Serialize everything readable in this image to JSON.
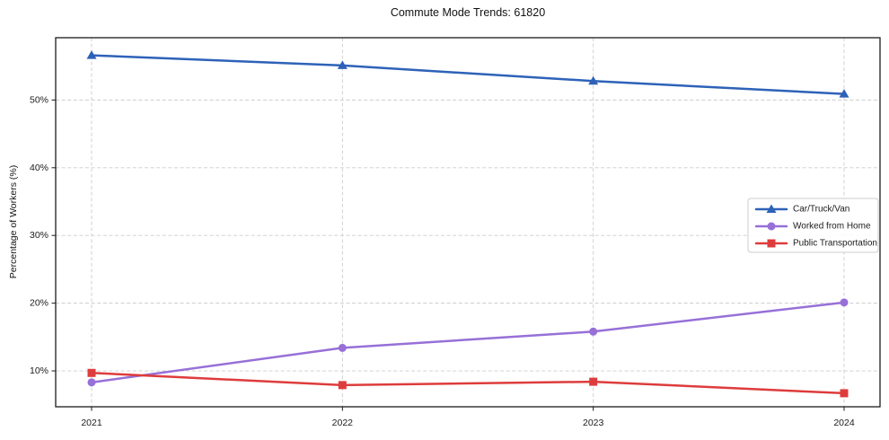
{
  "chart_data": {
    "type": "line",
    "title": "Commute Mode Trends: 61820",
    "xlabel": "",
    "ylabel": "Percentage of Workers (%)",
    "categories": [
      "2021",
      "2022",
      "2023",
      "2024"
    ],
    "series": [
      {
        "name": "Car/Truck/Van",
        "values": [
          56.6,
          55.1,
          52.8,
          50.9
        ],
        "color": "#2e62b8",
        "marker": "triangle"
      },
      {
        "name": "Worked from Home",
        "values": [
          8.3,
          13.4,
          15.8,
          20.1
        ],
        "color": "#9770d8",
        "marker": "circle"
      },
      {
        "name": "Public Transportation",
        "values": [
          9.7,
          7.9,
          8.4,
          6.7
        ],
        "color": "#de3c3c",
        "marker": "square"
      }
    ],
    "ylim": [
      4.7,
      59.2
    ],
    "yticks": [
      10,
      20,
      30,
      40,
      50
    ],
    "ytick_suffix": "%",
    "grid": "dashed-both",
    "grid_color": "#cccccc",
    "axis_color": "#1b1b1b",
    "legend_position": "right-center",
    "background": "#ffffff"
  }
}
